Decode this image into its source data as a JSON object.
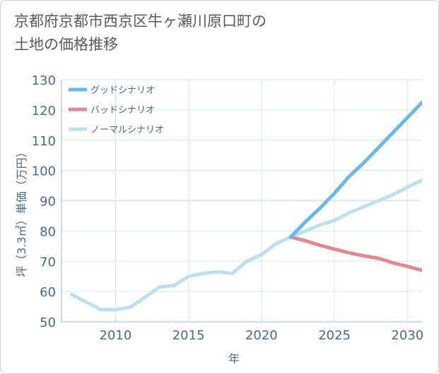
{
  "title_line1": "京都府京都市西京区牛ヶ瀬川原口町の",
  "title_line2": "土地の価格推移",
  "chart_data": {
    "type": "line",
    "title": "京都府京都市西京区牛ヶ瀬川原口町の土地の価格推移",
    "xlabel": "年",
    "ylabel": "坪（3.3㎡）単価（万円）",
    "xlim": [
      2006.3,
      2031.0
    ],
    "ylim": [
      50,
      130
    ],
    "x_ticks": [
      2010,
      2015,
      2020,
      2025,
      2030
    ],
    "y_ticks": [
      50,
      60,
      70,
      80,
      90,
      100,
      110,
      120,
      130
    ],
    "grid": true,
    "legend_position": "top-left",
    "series": [
      {
        "name": "グッドシナリオ",
        "color": "#6cb8ea",
        "x": [
          2022,
          2023,
          2024,
          2025,
          2026,
          2027,
          2028,
          2029,
          2030,
          2031
        ],
        "values": [
          78,
          83,
          87.5,
          92.5,
          98,
          102.5,
          107.5,
          112.5,
          117.5,
          122.5
        ]
      },
      {
        "name": "バッドシナリオ",
        "color": "#e28890",
        "x": [
          2022,
          2023,
          2024,
          2025,
          2026,
          2027,
          2028,
          2029,
          2030,
          2031
        ],
        "values": [
          78,
          76.8,
          75.3,
          74,
          72.8,
          71.8,
          71,
          69.5,
          68.3,
          67
        ]
      },
      {
        "name": "ノーマルシナリオ",
        "color": "#bde0ef",
        "x": [
          2007,
          2008,
          2009,
          2010,
          2011,
          2012,
          2013,
          2014,
          2015,
          2016,
          2017,
          2018,
          2019,
          2020,
          2021,
          2022,
          2023,
          2024,
          2025,
          2026,
          2027,
          2028,
          2029,
          2030,
          2031
        ],
        "values": [
          59,
          56.5,
          54,
          54,
          54.8,
          58,
          61.5,
          62,
          65,
          66,
          66.5,
          66,
          70,
          72.2,
          75.8,
          78,
          80,
          82,
          83.5,
          86,
          88,
          90,
          92,
          94.5,
          96.8
        ]
      }
    ]
  }
}
